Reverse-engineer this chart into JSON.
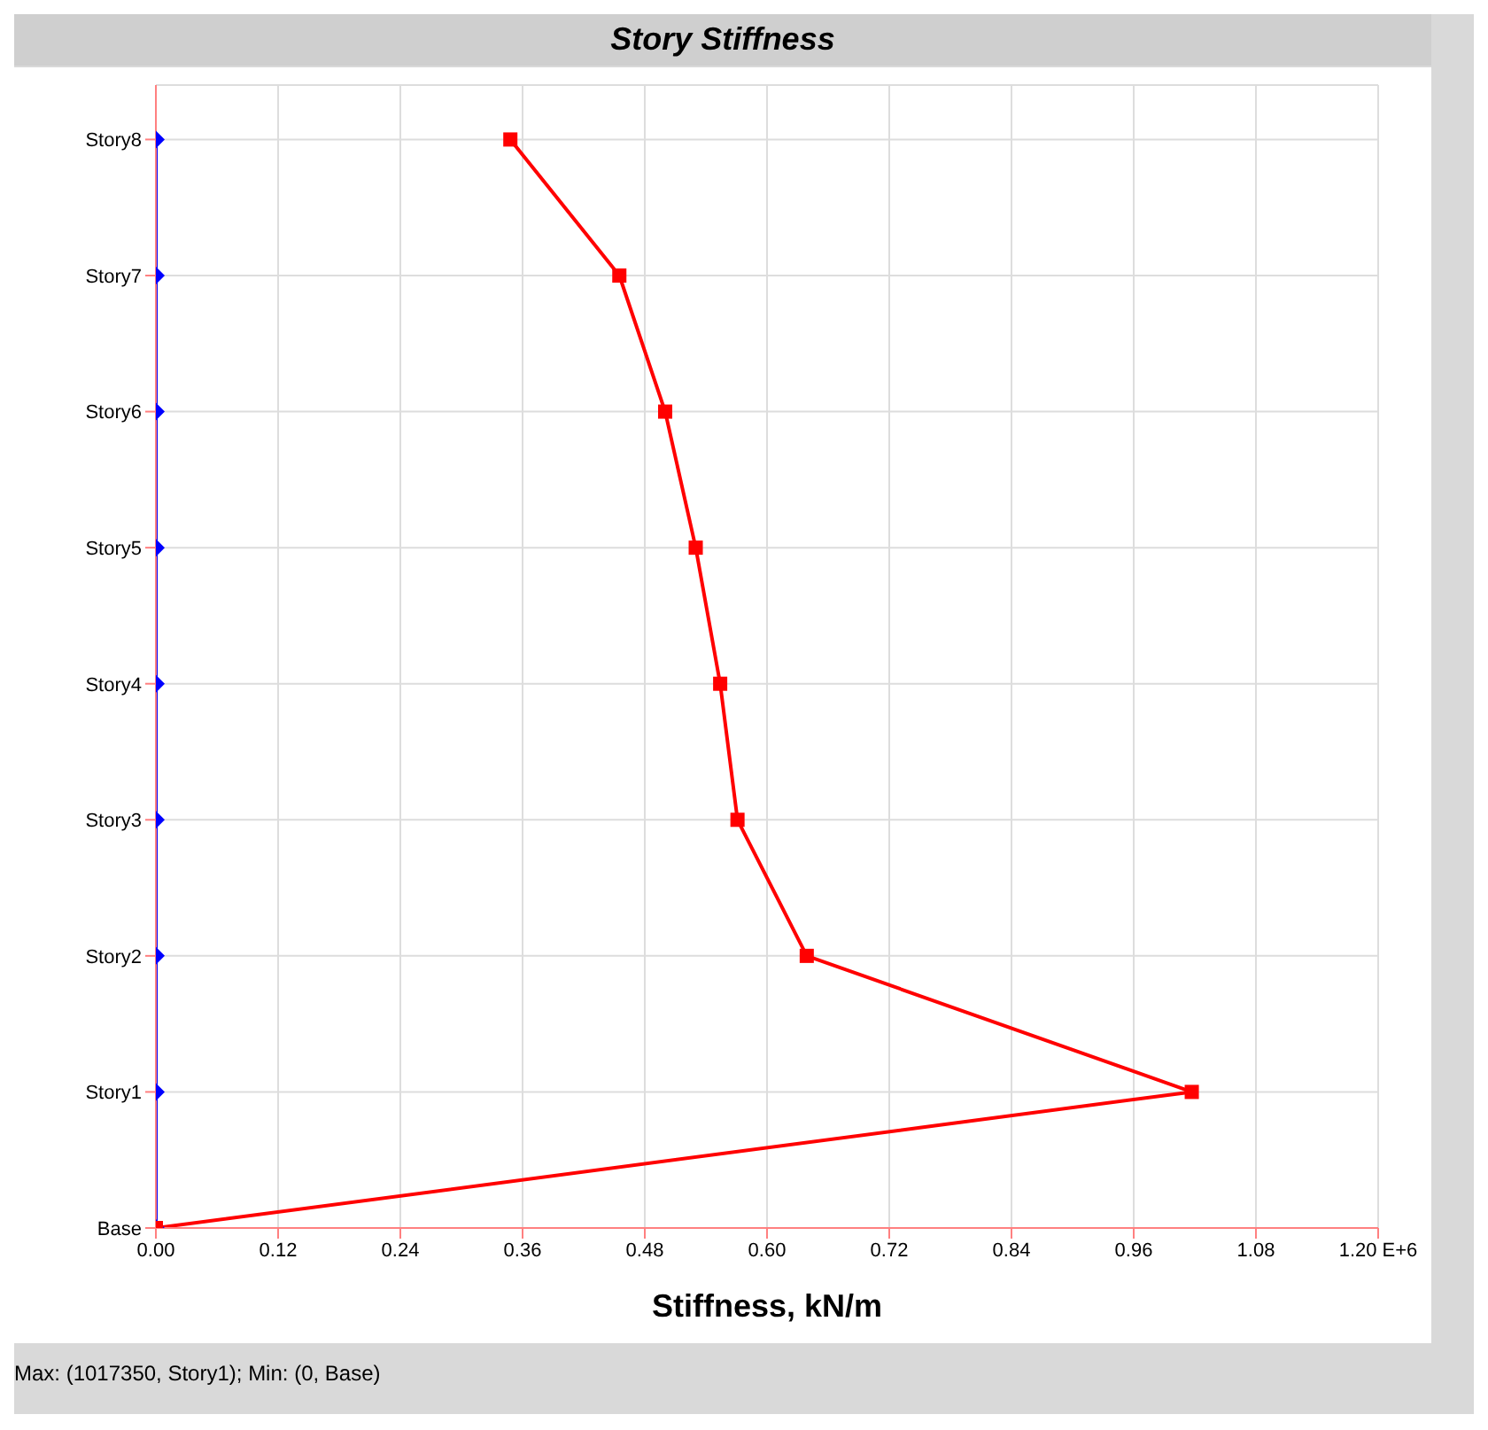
{
  "chart_data": {
    "type": "line",
    "orientation": "horizontal",
    "title": "Story Stiffness",
    "xlabel": "Stiffness, kN/m",
    "categories": [
      "Story8",
      "Story7",
      "Story6",
      "Story5",
      "Story4",
      "Story3",
      "Story2",
      "Story1",
      "Base"
    ],
    "series": [
      {
        "color": "#0000ff",
        "values": [
          0,
          0,
          0,
          0,
          0,
          0,
          0,
          0,
          0
        ],
        "marker": "diamond"
      },
      {
        "color": "#ff0000",
        "values": [
          0.348,
          0.455,
          0.5,
          0.53,
          0.554,
          0.571,
          0.639,
          1.017,
          0
        ],
        "marker": "square"
      }
    ],
    "xlim": [
      0,
      1.2
    ],
    "xticks": [
      {
        "value": 0,
        "label": "0.00"
      },
      {
        "value": 0.12,
        "label": "0.12"
      },
      {
        "value": 0.24,
        "label": "0.24"
      },
      {
        "value": 0.36,
        "label": "0.36"
      },
      {
        "value": 0.48,
        "label": "0.48"
      },
      {
        "value": 0.6,
        "label": "0.60"
      },
      {
        "value": 0.72,
        "label": "0.72"
      },
      {
        "value": 0.84,
        "label": "0.84"
      },
      {
        "value": 0.96,
        "label": "0.96"
      },
      {
        "value": 1.08,
        "label": "1.08"
      },
      {
        "value": 1.2,
        "label": "1.20 E+6"
      }
    ],
    "grid": true,
    "annotations": [
      "Max: (1017350, Story1);   Min: (0, Base)"
    ]
  }
}
